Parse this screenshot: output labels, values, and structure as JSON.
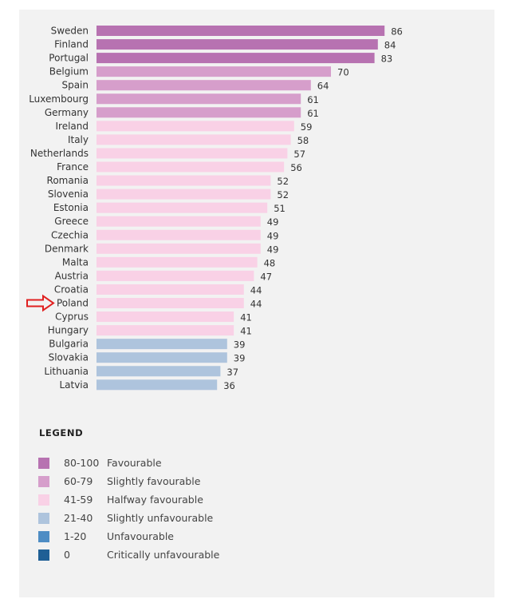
{
  "chart_data": {
    "type": "bar",
    "orientation": "horizontal",
    "categories": [
      "Sweden",
      "Finland",
      "Portugal",
      "Belgium",
      "Spain",
      "Luxembourg",
      "Germany",
      "Ireland",
      "Italy",
      "Netherlands",
      "France",
      "Romania",
      "Slovenia",
      "Estonia",
      "Greece",
      "Czechia",
      "Denmark",
      "Malta",
      "Austria",
      "Croatia",
      "Poland",
      "Cyprus",
      "Hungary",
      "Bulgaria",
      "Slovakia",
      "Lithuania",
      "Latvia"
    ],
    "values": [
      86,
      84,
      83,
      70,
      64,
      61,
      61,
      59,
      58,
      57,
      56,
      52,
      52,
      51,
      49,
      49,
      49,
      48,
      47,
      44,
      44,
      41,
      41,
      39,
      39,
      37,
      36
    ],
    "xlim": [
      0,
      100
    ],
    "grid": false,
    "data_labels": true,
    "highlighted_category": "Poland",
    "highlight_marker": "red-outline-arrow"
  },
  "legend": {
    "title": "LEGEND",
    "items": [
      {
        "range": "80-100",
        "label": "Favourable",
        "color": "#b772b1",
        "min": 80,
        "max": 100
      },
      {
        "range": "60-79",
        "label": "Slightly favourable",
        "color": "#d69ecb",
        "min": 60,
        "max": 79
      },
      {
        "range": "41-59",
        "label": "Halfway favourable",
        "color": "#f9d1e6",
        "min": 41,
        "max": 59
      },
      {
        "range": "21-40",
        "label": "Slightly unfavourable",
        "color": "#aec4dd",
        "min": 21,
        "max": 40
      },
      {
        "range": "1-20",
        "label": "Unfavourable",
        "color": "#4e8dc4",
        "min": 1,
        "max": 20
      },
      {
        "range": "0",
        "label": "Critically unfavourable",
        "color": "#1f5f95",
        "min": 0,
        "max": 0
      }
    ]
  },
  "colors": {
    "panel_background": "#f2f2f2",
    "highlight_arrow": "#e02020"
  }
}
